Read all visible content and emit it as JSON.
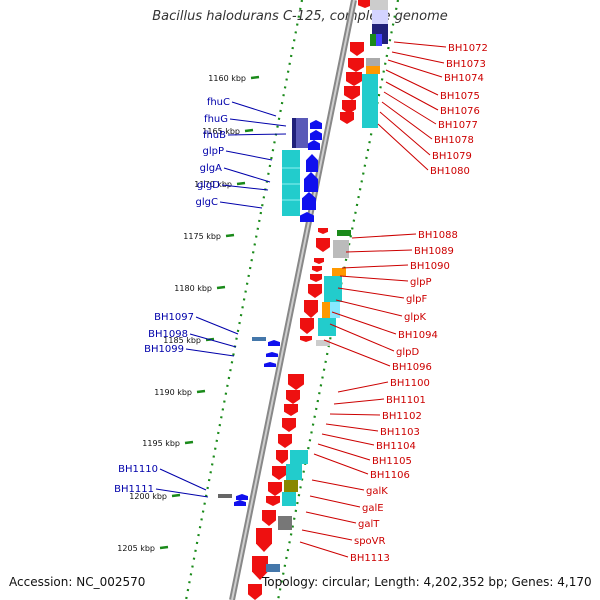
{
  "title": "Bacillus halodurans C-125, complete genome",
  "accession": "Accession: NC_002570",
  "summary": "Topology: circular; Length: 4,202,352 bp; Genes: 4,170",
  "colors": {
    "forward_gene": "#1010ee",
    "reverse_gene": "#ee1010",
    "label_left": "#0000aa",
    "label_right": "#cc0000",
    "scale_tick": "#1a8a1a",
    "backbone": "#888888",
    "cog_cyan": "#22cccc",
    "cog_navy": "#20207a",
    "cog_orange": "#ff9900",
    "cog_green": "#1a8a1a",
    "cog_gray": "#aaaaaa",
    "cog_olive": "#888800",
    "cog_steel": "#4477aa"
  },
  "scale_labels": [
    "1160 kbp",
    "1165 kbp",
    "1170 kbp",
    "1175 kbp",
    "1180 kbp",
    "1185 kbp",
    "1190 kbp",
    "1195 kbp",
    "1200 kbp",
    "1205 kbp"
  ],
  "left_labels": [
    "fhuC",
    "fhuG",
    "fhuB",
    "glpP",
    "glgA",
    "glgD",
    "glgC",
    "BH1097",
    "BH1098",
    "BH1099",
    "BH1110",
    "BH1111"
  ],
  "right_labels": [
    "BH1072",
    "BH1073",
    "BH1074",
    "BH1075",
    "BH1076",
    "BH1077",
    "BH1078",
    "BH1079",
    "BH1080",
    "BH1088",
    "BH1089",
    "BH1090",
    "glpP",
    "glpF",
    "glpK",
    "BH1094",
    "glpD",
    "BH1096",
    "BH1100",
    "BH1101",
    "BH1102",
    "BH1103",
    "BH1104",
    "BH1105",
    "BH1106",
    "galK",
    "galE",
    "galT",
    "spoVR",
    "BH1113"
  ]
}
